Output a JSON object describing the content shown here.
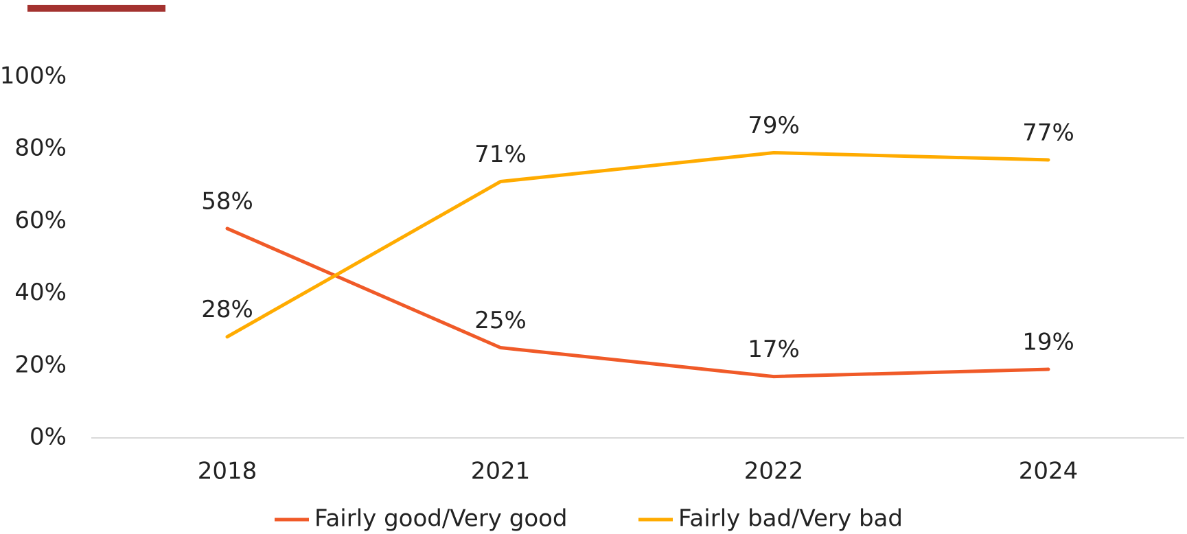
{
  "chart_data": {
    "type": "line",
    "categories": [
      "2018",
      "2021",
      "2022",
      "2024"
    ],
    "series": [
      {
        "name": "Fairly good/Very good",
        "color": "#f05a28",
        "values": [
          58,
          25,
          17,
          19
        ],
        "value_labels": [
          "58%",
          "25%",
          "17%",
          "19%"
        ]
      },
      {
        "name": "Fairly bad/Very bad",
        "color": "#ffab00",
        "values": [
          28,
          71,
          79,
          77
        ],
        "value_labels": [
          "28%",
          "71%",
          "79%",
          "77%"
        ]
      }
    ],
    "ylim": [
      0,
      100
    ],
    "yticks": [
      {
        "value": 0,
        "label": "0%"
      },
      {
        "value": 20,
        "label": "20%"
      },
      {
        "value": 40,
        "label": "40%"
      },
      {
        "value": 60,
        "label": "60%"
      },
      {
        "value": 80,
        "label": "80%"
      },
      {
        "value": 100,
        "label": "100%"
      }
    ],
    "legend": "bottom",
    "grid": false
  }
}
